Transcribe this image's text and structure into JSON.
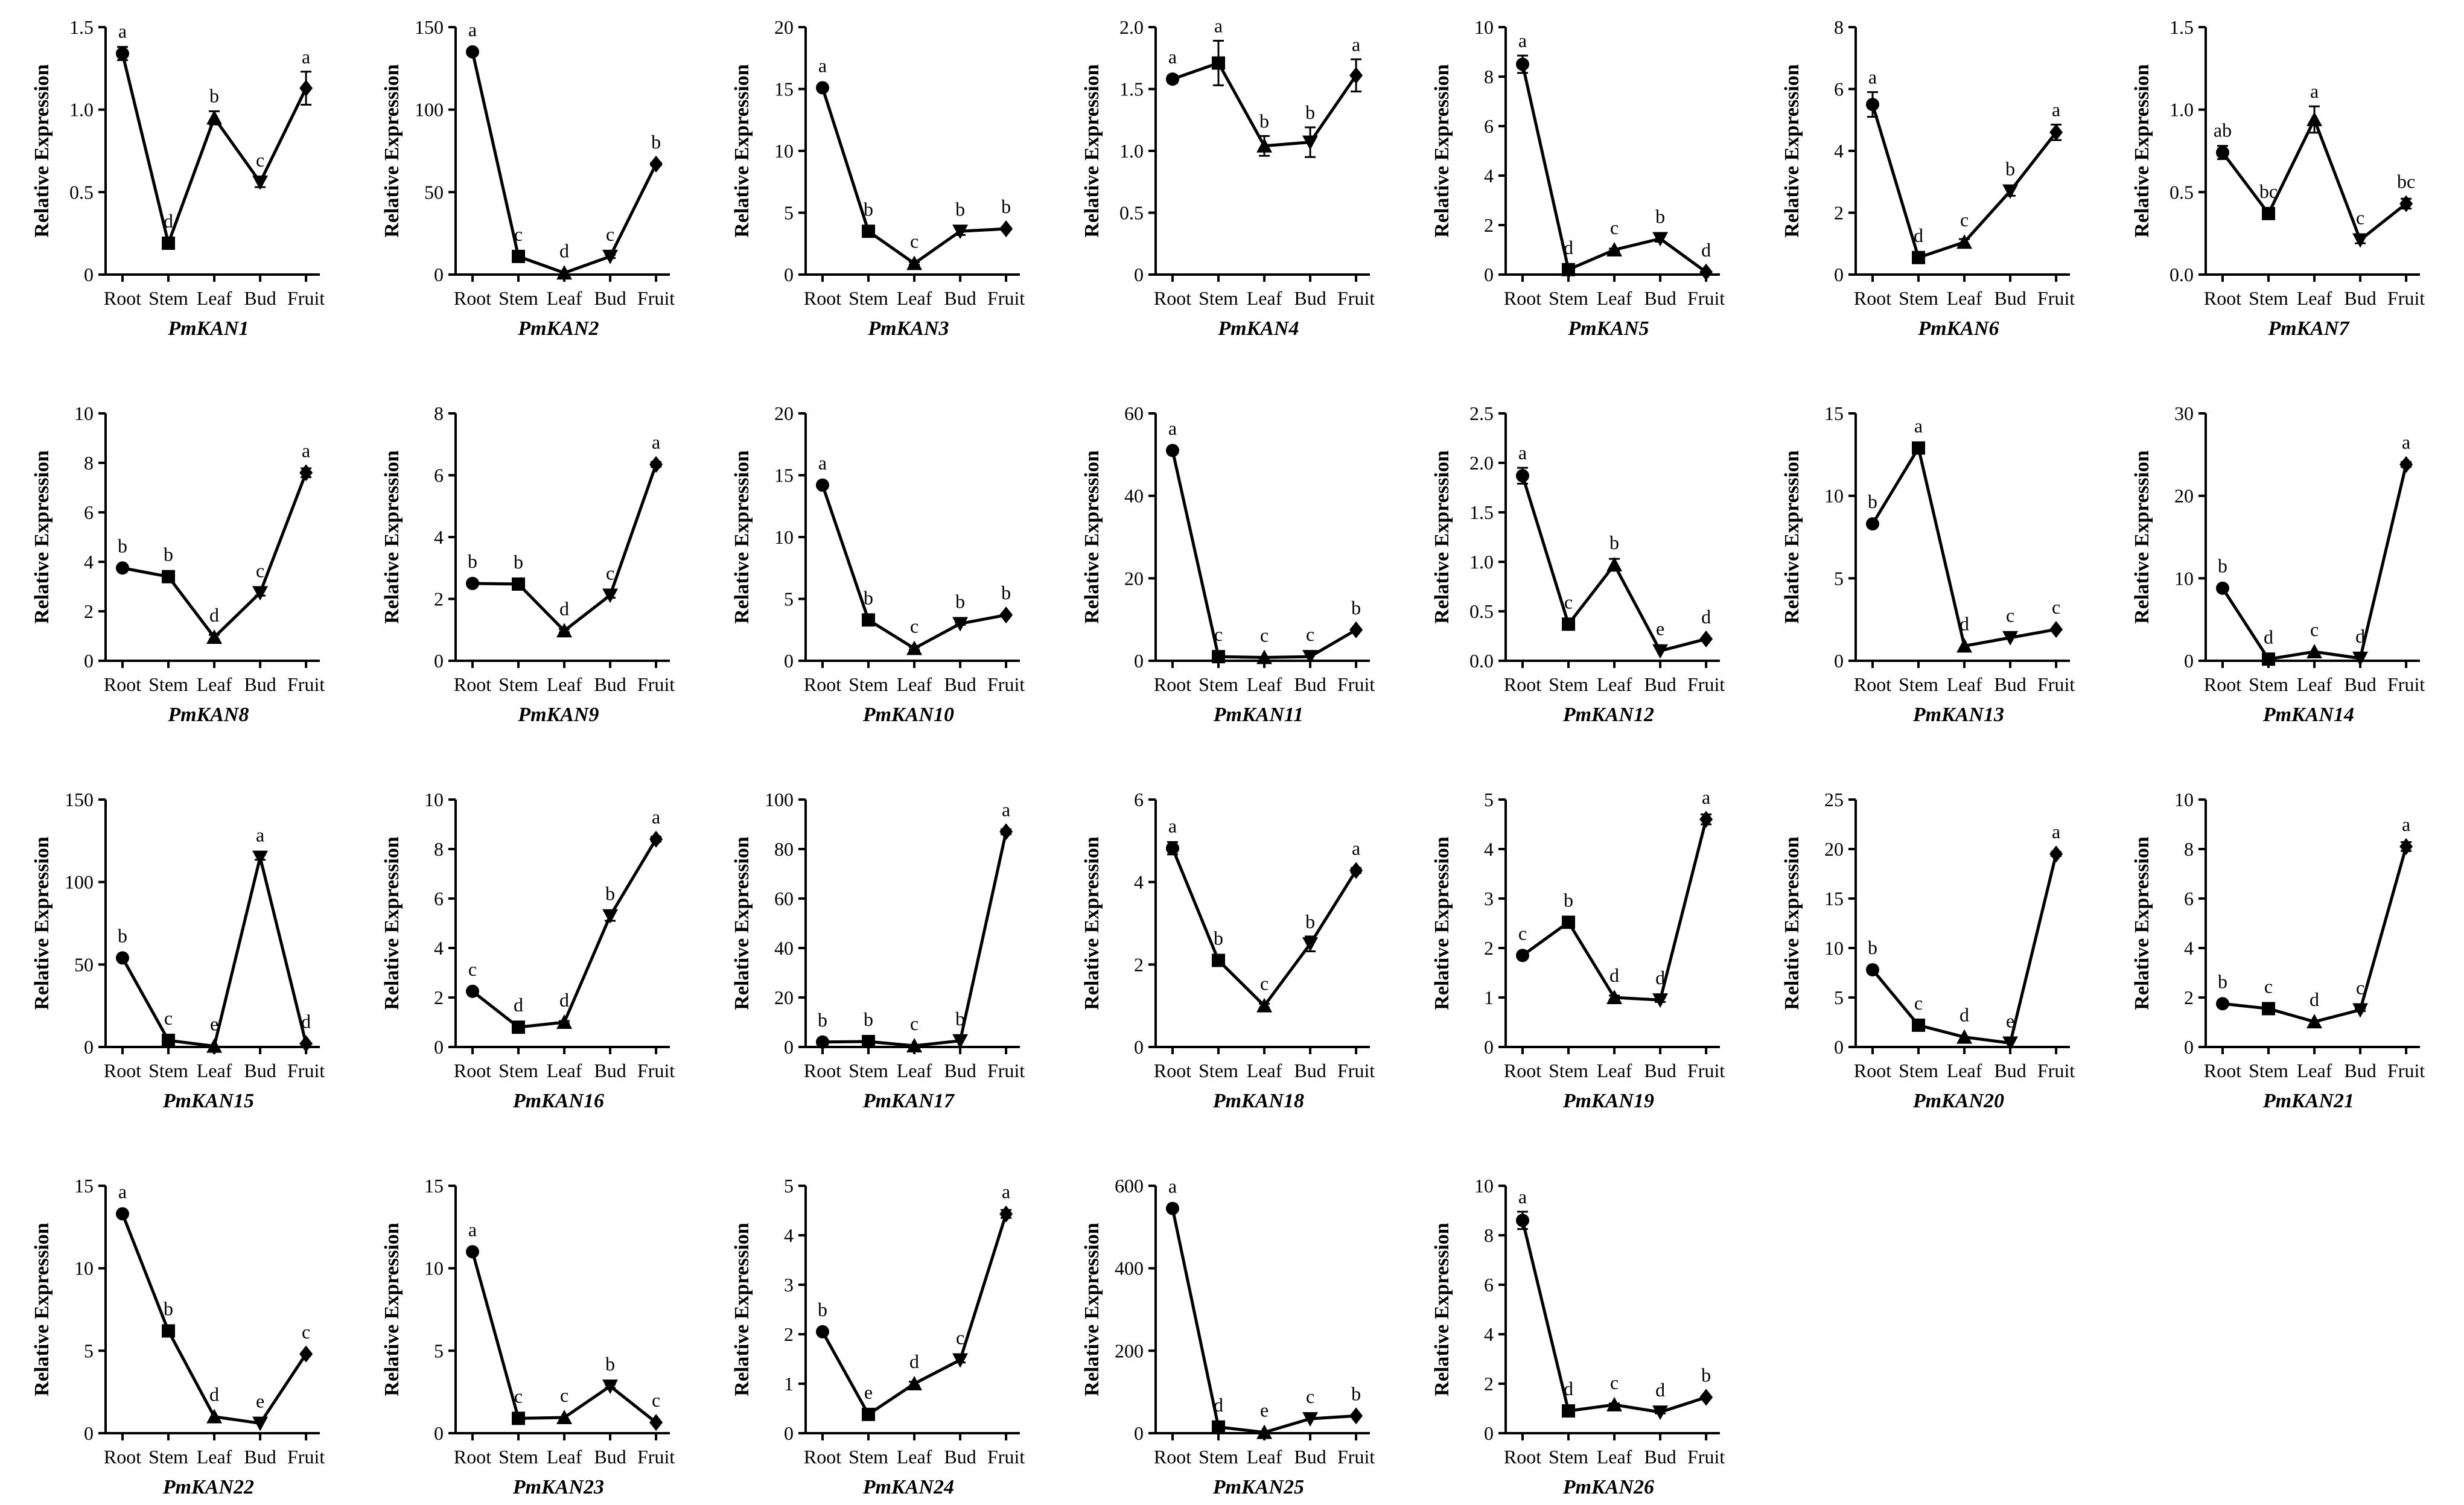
{
  "figure": {
    "ylabel": "Relative Expression",
    "categories": [
      "Root",
      "Stem",
      "Leaf",
      "Bud",
      "Fruit"
    ],
    "markers": [
      "circle",
      "square",
      "triangle-up",
      "triangle-down",
      "diamond"
    ]
  },
  "chart_data": [
    {
      "type": "line",
      "title": "PmKAN1",
      "categories": [
        "Root",
        "Stem",
        "Leaf",
        "Bud",
        "Fruit"
      ],
      "values": [
        1.34,
        0.19,
        0.95,
        0.56,
        1.13
      ],
      "errors": [
        0.04,
        0.02,
        0.04,
        0.03,
        0.1
      ],
      "letters": [
        "a",
        "d",
        "b",
        "c",
        "a"
      ],
      "ylim": [
        0,
        1.5
      ],
      "yticks": [
        "0",
        "0.5",
        "1.0",
        "1.5"
      ],
      "xlabel": "",
      "ylabel": "Relative Expression"
    },
    {
      "type": "line",
      "title": "PmKAN2",
      "categories": [
        "Root",
        "Stem",
        "Leaf",
        "Bud",
        "Fruit"
      ],
      "values": [
        135,
        11,
        1,
        11,
        67
      ],
      "errors": [
        1,
        1,
        0.3,
        1,
        1
      ],
      "letters": [
        "a",
        "c",
        "d",
        "c",
        "b"
      ],
      "ylim": [
        0,
        150
      ],
      "yticks": [
        "0",
        "50",
        "100",
        "150"
      ],
      "xlabel": "",
      "ylabel": "Relative Expression"
    },
    {
      "type": "line",
      "title": "PmKAN3",
      "categories": [
        "Root",
        "Stem",
        "Leaf",
        "Bud",
        "Fruit"
      ],
      "values": [
        15.1,
        3.5,
        0.9,
        3.5,
        3.7
      ],
      "errors": [
        0.2,
        0.2,
        0.1,
        0.3,
        0.1
      ],
      "letters": [
        "a",
        "b",
        "c",
        "b",
        "b"
      ],
      "ylim": [
        0,
        20
      ],
      "yticks": [
        "0",
        "5",
        "10",
        "15",
        "20"
      ],
      "xlabel": "",
      "ylabel": "Relative Expression"
    },
    {
      "type": "line",
      "title": "PmKAN4",
      "categories": [
        "Root",
        "Stem",
        "Leaf",
        "Bud",
        "Fruit"
      ],
      "values": [
        1.58,
        1.71,
        1.04,
        1.07,
        1.61
      ],
      "errors": [
        0.03,
        0.18,
        0.08,
        0.12,
        0.13
      ],
      "letters": [
        "a",
        "a",
        "b",
        "b",
        "a"
      ],
      "ylim": [
        0,
        2.0
      ],
      "yticks": [
        "0",
        "0.5",
        "1.0",
        "1.5",
        "2.0"
      ],
      "xlabel": "",
      "ylabel": "Relative Expression"
    },
    {
      "type": "line",
      "title": "PmKAN5",
      "categories": [
        "Root",
        "Stem",
        "Leaf",
        "Bud",
        "Fruit"
      ],
      "values": [
        8.5,
        0.2,
        1.0,
        1.45,
        0.1
      ],
      "errors": [
        0.35,
        0.05,
        0.05,
        0.12,
        0.03
      ],
      "letters": [
        "a",
        "d",
        "c",
        "b",
        "d"
      ],
      "ylim": [
        0,
        10
      ],
      "yticks": [
        "0",
        "2",
        "4",
        "6",
        "8",
        "10"
      ],
      "xlabel": "",
      "ylabel": "Relative Expression"
    },
    {
      "type": "line",
      "title": "PmKAN6",
      "categories": [
        "Root",
        "Stem",
        "Leaf",
        "Bud",
        "Fruit"
      ],
      "values": [
        5.5,
        0.55,
        1.05,
        2.7,
        4.6
      ],
      "errors": [
        0.4,
        0.05,
        0.1,
        0.15,
        0.25
      ],
      "letters": [
        "a",
        "d",
        "c",
        "b",
        "a"
      ],
      "ylim": [
        0,
        8
      ],
      "yticks": [
        "0",
        "2",
        "4",
        "6",
        "8"
      ],
      "xlabel": "",
      "ylabel": "Relative Expression"
    },
    {
      "type": "line",
      "title": "PmKAN7",
      "categories": [
        "Root",
        "Stem",
        "Leaf",
        "Bud",
        "Fruit"
      ],
      "values": [
        0.74,
        0.37,
        0.94,
        0.21,
        0.43
      ],
      "errors": [
        0.04,
        0.02,
        0.08,
        0.02,
        0.03
      ],
      "letters": [
        "ab",
        "bc",
        "a",
        "c",
        "bc"
      ],
      "ylim": [
        0,
        1.5
      ],
      "yticks": [
        "0.0",
        "0.5",
        "1.0",
        "1.5"
      ],
      "xlabel": "",
      "ylabel": "Relative Expression"
    },
    {
      "type": "line",
      "title": "PmKAN8",
      "categories": [
        "Root",
        "Stem",
        "Leaf",
        "Bud",
        "Fruit"
      ],
      "values": [
        3.75,
        3.4,
        0.95,
        2.75,
        7.6
      ],
      "errors": [
        0.08,
        0.2,
        0.1,
        0.12,
        0.18
      ],
      "letters": [
        "b",
        "b",
        "d",
        "c",
        "a"
      ],
      "ylim": [
        0,
        10
      ],
      "yticks": [
        "0",
        "2",
        "4",
        "6",
        "8",
        "10"
      ],
      "xlabel": "",
      "ylabel": "Relative Expression"
    },
    {
      "type": "line",
      "title": "PmKAN9",
      "categories": [
        "Root",
        "Stem",
        "Leaf",
        "Bud",
        "Fruit"
      ],
      "values": [
        2.5,
        2.48,
        0.97,
        2.12,
        6.35
      ],
      "errors": [
        0.05,
        0.05,
        0.05,
        0.08,
        0.08
      ],
      "letters": [
        "b",
        "b",
        "d",
        "c",
        "a"
      ],
      "ylim": [
        0,
        8
      ],
      "yticks": [
        "0",
        "2",
        "4",
        "6",
        "8"
      ],
      "xlabel": "",
      "ylabel": "Relative Expression"
    },
    {
      "type": "line",
      "title": "PmKAN10",
      "categories": [
        "Root",
        "Stem",
        "Leaf",
        "Bud",
        "Fruit"
      ],
      "values": [
        14.2,
        3.3,
        1.0,
        3.0,
        3.7
      ],
      "errors": [
        0.15,
        0.1,
        0.1,
        0.1,
        0.1
      ],
      "letters": [
        "a",
        "b",
        "c",
        "b",
        "b"
      ],
      "ylim": [
        0,
        20
      ],
      "yticks": [
        "0",
        "5",
        "10",
        "15",
        "20"
      ],
      "xlabel": "",
      "ylabel": "Relative Expression"
    },
    {
      "type": "line",
      "title": "PmKAN11",
      "categories": [
        "Root",
        "Stem",
        "Leaf",
        "Bud",
        "Fruit"
      ],
      "values": [
        51,
        1,
        0.8,
        1,
        7.5
      ],
      "errors": [
        0.5,
        0.2,
        0.2,
        0.2,
        0.3
      ],
      "letters": [
        "a",
        "c",
        "c",
        "c",
        "b"
      ],
      "ylim": [
        0,
        60
      ],
      "yticks": [
        "0",
        "20",
        "40",
        "60"
      ],
      "xlabel": "",
      "ylabel": "Relative Expression"
    },
    {
      "type": "line",
      "title": "PmKAN12",
      "categories": [
        "Root",
        "Stem",
        "Leaf",
        "Bud",
        "Fruit"
      ],
      "values": [
        1.87,
        0.37,
        0.97,
        0.1,
        0.22
      ],
      "errors": [
        0.08,
        0.02,
        0.06,
        0.01,
        0.01
      ],
      "letters": [
        "a",
        "c",
        "b",
        "e",
        "d"
      ],
      "ylim": [
        0,
        2.5
      ],
      "yticks": [
        "0.0",
        "0.5",
        "1.0",
        "1.5",
        "2.0",
        "2.5"
      ],
      "xlabel": "",
      "ylabel": "Relative Expression"
    },
    {
      "type": "line",
      "title": "PmKAN13",
      "categories": [
        "Root",
        "Stem",
        "Leaf",
        "Bud",
        "Fruit"
      ],
      "values": [
        8.3,
        12.9,
        0.9,
        1.4,
        1.9
      ],
      "errors": [
        0.1,
        0.15,
        0.05,
        0.05,
        0.05
      ],
      "letters": [
        "b",
        "a",
        "d",
        "c",
        "c"
      ],
      "ylim": [
        0,
        15
      ],
      "yticks": [
        "0",
        "5",
        "10",
        "15"
      ],
      "xlabel": "",
      "ylabel": "Relative Expression"
    },
    {
      "type": "line",
      "title": "PmKAN14",
      "categories": [
        "Root",
        "Stem",
        "Leaf",
        "Bud",
        "Fruit"
      ],
      "values": [
        8.8,
        0.2,
        1.1,
        0.3,
        23.8
      ],
      "errors": [
        0.2,
        0.05,
        0.05,
        0.05,
        0.3
      ],
      "letters": [
        "b",
        "d",
        "c",
        "d",
        "a"
      ],
      "ylim": [
        0,
        30
      ],
      "yticks": [
        "0",
        "10",
        "20",
        "30"
      ],
      "xlabel": "",
      "ylabel": "Relative Expression"
    },
    {
      "type": "line",
      "title": "PmKAN15",
      "categories": [
        "Root",
        "Stem",
        "Leaf",
        "Bud",
        "Fruit"
      ],
      "values": [
        54,
        4,
        0.5,
        115,
        2
      ],
      "errors": [
        1,
        0.5,
        0.2,
        1.5,
        0.3
      ],
      "letters": [
        "b",
        "c",
        "e",
        "a",
        "d"
      ],
      "ylim": [
        0,
        150
      ],
      "yticks": [
        "0",
        "50",
        "100",
        "150"
      ],
      "xlabel": "",
      "ylabel": "Relative Expression"
    },
    {
      "type": "line",
      "title": "PmKAN16",
      "categories": [
        "Root",
        "Stem",
        "Leaf",
        "Bud",
        "Fruit"
      ],
      "values": [
        2.25,
        0.8,
        1.0,
        5.3,
        8.4
      ],
      "errors": [
        0.06,
        0.05,
        0.05,
        0.2,
        0.1
      ],
      "letters": [
        "c",
        "d",
        "d",
        "b",
        "a"
      ],
      "ylim": [
        0,
        10
      ],
      "yticks": [
        "0",
        "2",
        "4",
        "6",
        "8",
        "10"
      ],
      "xlabel": "",
      "ylabel": "Relative Expression"
    },
    {
      "type": "line",
      "title": "PmKAN17",
      "categories": [
        "Root",
        "Stem",
        "Leaf",
        "Bud",
        "Fruit"
      ],
      "values": [
        2,
        2.2,
        0.5,
        2.5,
        87
      ],
      "errors": [
        0.2,
        0.2,
        0.1,
        0.2,
        1
      ],
      "letters": [
        "b",
        "b",
        "c",
        "b",
        "a"
      ],
      "ylim": [
        0,
        100
      ],
      "yticks": [
        "0",
        "20",
        "40",
        "60",
        "80",
        "100"
      ],
      "xlabel": "",
      "ylabel": "Relative Expression"
    },
    {
      "type": "line",
      "title": "PmKAN18",
      "categories": [
        "Root",
        "Stem",
        "Leaf",
        "Bud",
        "Fruit"
      ],
      "values": [
        4.82,
        2.1,
        1.0,
        2.5,
        4.28
      ],
      "errors": [
        0.15,
        0.08,
        0.05,
        0.18,
        0.06
      ],
      "letters": [
        "a",
        "b",
        "c",
        "b",
        "a"
      ],
      "ylim": [
        0,
        6
      ],
      "yticks": [
        "0",
        "2",
        "4",
        "6"
      ],
      "xlabel": "",
      "ylabel": "Relative Expression"
    },
    {
      "type": "line",
      "title": "PmKAN19",
      "categories": [
        "Root",
        "Stem",
        "Leaf",
        "Bud",
        "Fruit"
      ],
      "values": [
        1.85,
        2.52,
        1.0,
        0.95,
        4.6
      ],
      "errors": [
        0.04,
        0.04,
        0.04,
        0.04,
        0.1
      ],
      "letters": [
        "c",
        "b",
        "d",
        "d",
        "a"
      ],
      "ylim": [
        0,
        5
      ],
      "yticks": [
        "0",
        "1",
        "2",
        "3",
        "4",
        "5"
      ],
      "xlabel": "",
      "ylabel": "Relative Expression"
    },
    {
      "type": "line",
      "title": "PmKAN20",
      "categories": [
        "Root",
        "Stem",
        "Leaf",
        "Bud",
        "Fruit"
      ],
      "values": [
        7.8,
        2.2,
        1.0,
        0.4,
        19.5
      ],
      "errors": [
        0.15,
        0.1,
        0.05,
        0.05,
        0.2
      ],
      "letters": [
        "b",
        "c",
        "d",
        "e",
        "a"
      ],
      "ylim": [
        0,
        25
      ],
      "yticks": [
        "0",
        "5",
        "10",
        "15",
        "20",
        "25"
      ],
      "xlabel": "",
      "ylabel": "Relative Expression"
    },
    {
      "type": "line",
      "title": "PmKAN21",
      "categories": [
        "Root",
        "Stem",
        "Leaf",
        "Bud",
        "Fruit"
      ],
      "values": [
        1.75,
        1.55,
        1.02,
        1.5,
        8.1
      ],
      "errors": [
        0.05,
        0.05,
        0.04,
        0.05,
        0.18
      ],
      "letters": [
        "b",
        "c",
        "d",
        "c",
        "a"
      ],
      "ylim": [
        0,
        10
      ],
      "yticks": [
        "0",
        "2",
        "4",
        "6",
        "8",
        "10"
      ],
      "xlabel": "",
      "ylabel": "Relative Expression"
    },
    {
      "type": "line",
      "title": "PmKAN22",
      "categories": [
        "Root",
        "Stem",
        "Leaf",
        "Bud",
        "Fruit"
      ],
      "values": [
        13.3,
        6.2,
        1.0,
        0.6,
        4.8
      ],
      "errors": [
        0.15,
        0.1,
        0.05,
        0.05,
        0.08
      ],
      "letters": [
        "a",
        "b",
        "d",
        "e",
        "c"
      ],
      "ylim": [
        0,
        15
      ],
      "yticks": [
        "0",
        "5",
        "10",
        "15"
      ],
      "xlabel": "",
      "ylabel": "Relative Expression"
    },
    {
      "type": "line",
      "title": "PmKAN23",
      "categories": [
        "Root",
        "Stem",
        "Leaf",
        "Bud",
        "Fruit"
      ],
      "values": [
        11,
        0.9,
        0.95,
        2.85,
        0.65
      ],
      "errors": [
        0.1,
        0.05,
        0.05,
        0.1,
        0.05
      ],
      "letters": [
        "a",
        "c",
        "c",
        "b",
        "c"
      ],
      "ylim": [
        0,
        15
      ],
      "yticks": [
        "0",
        "5",
        "10",
        "15"
      ],
      "xlabel": "",
      "ylabel": "Relative Expression"
    },
    {
      "type": "line",
      "title": "PmKAN24",
      "categories": [
        "Root",
        "Stem",
        "Leaf",
        "Bud",
        "Fruit"
      ],
      "values": [
        2.05,
        0.38,
        1.0,
        1.48,
        4.43
      ],
      "errors": [
        0.04,
        0.03,
        0.04,
        0.05,
        0.08
      ],
      "letters": [
        "b",
        "e",
        "d",
        "c",
        "a"
      ],
      "ylim": [
        0,
        5
      ],
      "yticks": [
        "0",
        "1",
        "2",
        "3",
        "4",
        "5"
      ],
      "xlabel": "",
      "ylabel": "Relative Expression"
    },
    {
      "type": "line",
      "title": "PmKAN25",
      "categories": [
        "Root",
        "Stem",
        "Leaf",
        "Bud",
        "Fruit"
      ],
      "values": [
        545,
        15,
        2,
        35,
        42
      ],
      "errors": [
        5,
        2,
        1,
        2,
        2
      ],
      "letters": [
        "a",
        "d",
        "e",
        "c",
        "b"
      ],
      "ylim": [
        0,
        600
      ],
      "yticks": [
        "0",
        "200",
        "400",
        "600"
      ],
      "xlabel": "",
      "ylabel": "Relative Expression"
    },
    {
      "type": "line",
      "title": "PmKAN26",
      "categories": [
        "Root",
        "Stem",
        "Leaf",
        "Bud",
        "Fruit"
      ],
      "values": [
        8.6,
        0.9,
        1.15,
        0.85,
        1.45
      ],
      "errors": [
        0.35,
        0.05,
        0.05,
        0.05,
        0.05
      ],
      "letters": [
        "a",
        "d",
        "c",
        "d",
        "b"
      ],
      "ylim": [
        0,
        10
      ],
      "yticks": [
        "0",
        "2",
        "4",
        "6",
        "8",
        "10"
      ],
      "xlabel": "",
      "ylabel": "Relative Expression"
    }
  ]
}
